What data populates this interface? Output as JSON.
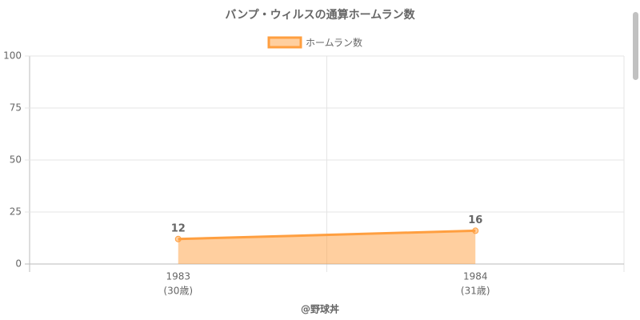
{
  "chart_data": {
    "type": "line",
    "title": "バンプ・ウィルスの通算ホームラン数",
    "categories": [
      [
        "1983",
        "(30歳)"
      ],
      [
        "1984",
        "(31歳)"
      ]
    ],
    "series": [
      {
        "name": "ホームラン数",
        "color": "#ff9f40",
        "fill": "rgba(255,159,64,0.5)",
        "values": [
          12,
          16
        ]
      }
    ],
    "ylim": [
      0,
      100
    ],
    "yticks": [
      0,
      25,
      50,
      75,
      100
    ],
    "grid": true,
    "legend": "top",
    "credit": "@野球丼"
  }
}
